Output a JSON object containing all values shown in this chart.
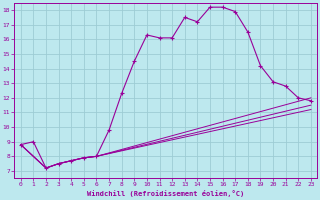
{
  "xlabel": "Windchill (Refroidissement éolien,°C)",
  "bg_color": "#bde8ee",
  "grid_color": "#9dccd4",
  "line_color": "#990099",
  "xlim": [
    -0.5,
    23.5
  ],
  "ylim": [
    6.5,
    18.5
  ],
  "xticks": [
    0,
    1,
    2,
    3,
    4,
    5,
    6,
    7,
    8,
    9,
    10,
    11,
    12,
    13,
    14,
    15,
    16,
    17,
    18,
    19,
    20,
    21,
    22,
    23
  ],
  "yticks": [
    7,
    8,
    9,
    10,
    11,
    12,
    13,
    14,
    15,
    16,
    17,
    18
  ],
  "line1_x": [
    0,
    1,
    2,
    3,
    4,
    5,
    6,
    7,
    8,
    9,
    10,
    11,
    12,
    13,
    14,
    15,
    16,
    17,
    18,
    19,
    20,
    21,
    22,
    23
  ],
  "line1_y": [
    8.8,
    9.0,
    7.2,
    7.5,
    7.7,
    7.9,
    8.0,
    9.8,
    12.3,
    14.5,
    16.3,
    16.1,
    16.1,
    17.5,
    17.2,
    18.2,
    18.2,
    17.9,
    16.5,
    14.2,
    13.1,
    12.8,
    12.0,
    11.8
  ],
  "line2_x": [
    0,
    2,
    3,
    4,
    5,
    6,
    23
  ],
  "line2_y": [
    8.8,
    7.2,
    7.5,
    7.7,
    7.9,
    8.0,
    12.0
  ],
  "line3_x": [
    0,
    2,
    3,
    4,
    5,
    6,
    23
  ],
  "line3_y": [
    8.8,
    7.2,
    7.5,
    7.7,
    7.9,
    8.0,
    11.5
  ],
  "line4_x": [
    0,
    2,
    3,
    4,
    5,
    6,
    23
  ],
  "line4_y": [
    8.8,
    7.2,
    7.5,
    7.7,
    7.9,
    8.0,
    11.2
  ]
}
